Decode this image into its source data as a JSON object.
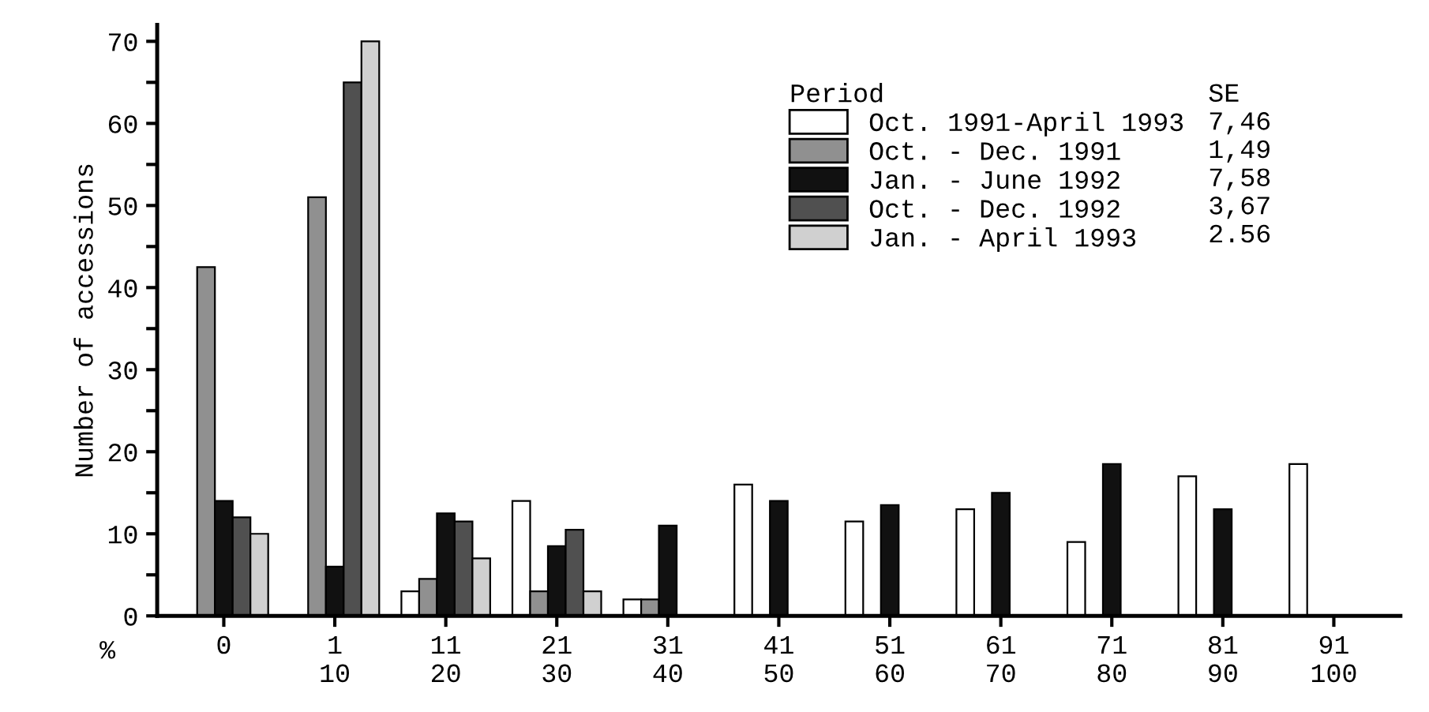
{
  "chart_data": {
    "type": "bar",
    "xlabel": "%",
    "ylabel": "Number of accessions",
    "legend_title": "Period",
    "categories": [
      "0",
      "1\n10",
      "11\n20",
      "21\n30",
      "31\n40",
      "41\n50",
      "51\n60",
      "61\n70",
      "71\n80",
      "81\n90",
      "91\n100"
    ],
    "series": [
      {
        "name": "Oct. 1991-April 1993",
        "color": "#ffffff",
        "values": [
          null,
          null,
          3,
          14,
          2,
          16,
          11.5,
          13,
          9,
          17,
          18.5
        ]
      },
      {
        "name": "Oct. - Dec. 1991",
        "color": "#909090",
        "values": [
          42.5,
          51,
          4.5,
          3,
          2,
          null,
          null,
          null,
          null,
          null,
          null
        ]
      },
      {
        "name": "Jan. - June 1992",
        "color": "#111111",
        "values": [
          14,
          6,
          12.5,
          8.5,
          11,
          14,
          13.5,
          15,
          18.5,
          13,
          null
        ]
      },
      {
        "name": "Oct. - Dec. 1992",
        "color": "#505050",
        "values": [
          12,
          65,
          11.5,
          10.5,
          null,
          null,
          null,
          null,
          null,
          null,
          null
        ]
      },
      {
        "name": "Jan. - April 1993",
        "color": "#d0d0d0",
        "values": [
          10,
          70,
          7,
          3,
          null,
          null,
          null,
          null,
          null,
          null,
          null
        ]
      }
    ],
    "annotations": [
      "SE",
      "7,46",
      "1,49",
      "7,58",
      "3,67",
      "2.56"
    ],
    "ylim": [
      0,
      72
    ],
    "yticks": [
      0,
      {
        "value": 5,
        "label": null
      },
      10,
      {
        "value": 15,
        "label": null
      },
      20,
      {
        "value": 25,
        "label": null
      },
      30,
      {
        "value": 35,
        "label": null
      },
      40,
      {
        "value": 45,
        "label": null
      },
      50,
      {
        "value": 55,
        "label": null
      },
      60,
      {
        "value": 65,
        "label": null
      },
      70
    ],
    "grid": false,
    "legend": "top right"
  }
}
